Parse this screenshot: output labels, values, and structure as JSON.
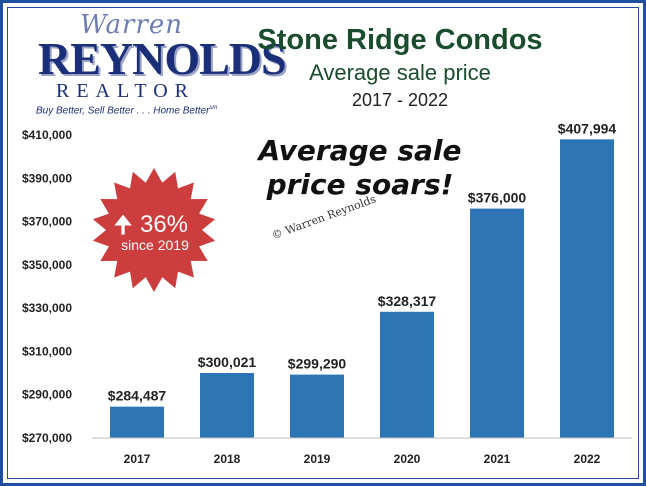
{
  "logo": {
    "script": "Warren",
    "name": "REYNOLDS",
    "sub": "REALTOR",
    "tagline": "Buy Better, Sell Better . . . Home Better",
    "sm": "sm"
  },
  "headline": {
    "line1": "Average sale",
    "line2": "price soars!"
  },
  "badge": {
    "arrow": "🠉",
    "percent": "36%",
    "text": "since 2019",
    "color": "#cc3e3e"
  },
  "watermark": "© Warren Reynolds",
  "chart_data": {
    "type": "bar",
    "title": "Stone Ridge Condos",
    "subtitle": "Average sale price",
    "period": "2017 - 2022",
    "categories": [
      "2017",
      "2018",
      "2019",
      "2020",
      "2021",
      "2022"
    ],
    "values": [
      284487,
      300021,
      299290,
      328317,
      376000,
      407994
    ],
    "value_labels": [
      "$284,487",
      "$300,021",
      "$299,290",
      "$328,317",
      "$376,000",
      "$407,994"
    ],
    "yticks": [
      270000,
      290000,
      310000,
      330000,
      350000,
      370000,
      390000,
      410000
    ],
    "ytick_labels": [
      "$270,000",
      "$290,000",
      "$310,000",
      "$330,000",
      "$350,000",
      "$370,000",
      "$390,000",
      "$410,000"
    ],
    "ylim": [
      270000,
      410000
    ],
    "bar_color": "#2e75b6",
    "grid": false,
    "legend": "none"
  }
}
